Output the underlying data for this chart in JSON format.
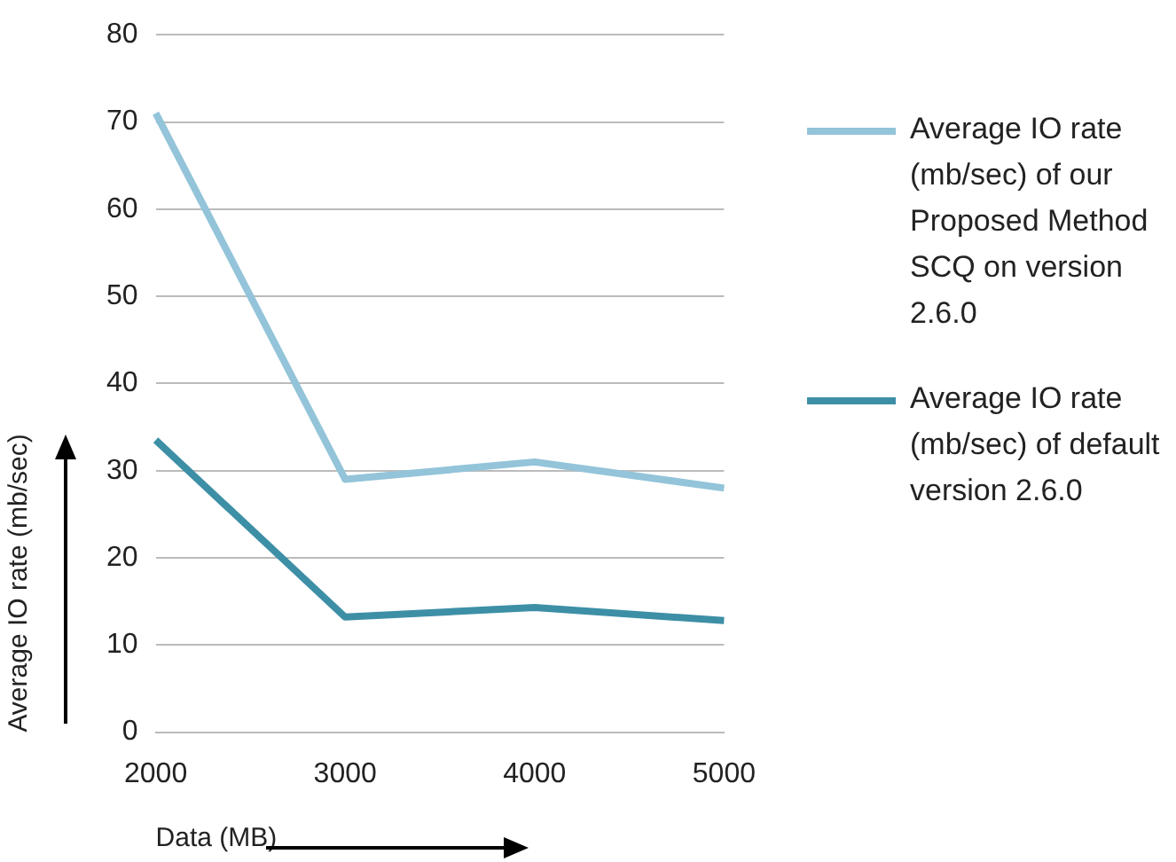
{
  "chart_data": {
    "type": "line",
    "xlabel": "Data (MB)",
    "ylabel": "Average IO rate (mb/sec)",
    "categories": [
      "2000",
      "3000",
      "4000",
      "5000"
    ],
    "series": [
      {
        "name": "Average IO rate (mb/sec) of our Proposed Method SCQ on version 2.6.0",
        "color": "#93c4d9",
        "values": [
          71,
          29,
          31,
          28
        ]
      },
      {
        "name": "Average IO rate (mb/sec) of default version 2.6.0",
        "color": "#3d8fa6",
        "values": [
          33.5,
          13.2,
          14.3,
          12.8
        ]
      }
    ],
    "ylim": [
      0,
      80
    ],
    "yticks": [
      0,
      10,
      20,
      30,
      40,
      50,
      60,
      70,
      80
    ],
    "grid": "y",
    "legend": "right",
    "marker": "none",
    "line_style": "solid"
  }
}
